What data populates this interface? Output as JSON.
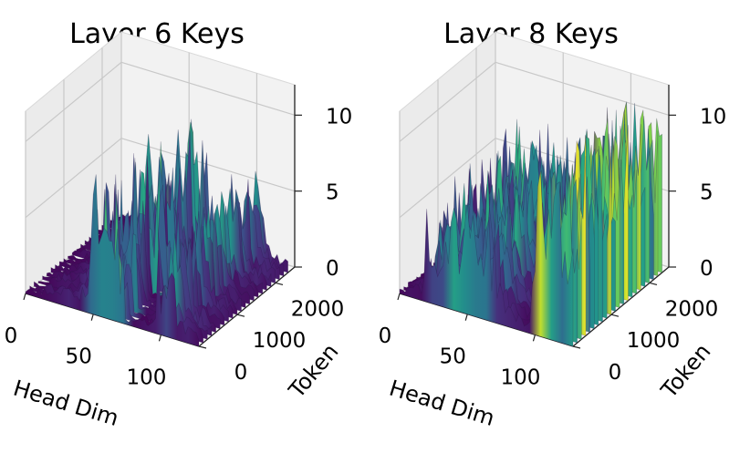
{
  "chart_data": [
    {
      "type": "surface3d",
      "title": "Layer 6 Keys",
      "xlabel": "Head Dim",
      "ylabel": "Token",
      "zlabel": "",
      "x_ticks": [
        "0",
        "50",
        "100"
      ],
      "y_ticks": [
        "0",
        "1000",
        "2000"
      ],
      "z_ticks": [
        "0",
        "5",
        "10"
      ],
      "xlim": [
        0,
        128
      ],
      "ylim": [
        0,
        2500
      ],
      "zlim": [
        0,
        12
      ],
      "colormap": "viridis",
      "grid": true,
      "series": [
        {
          "x": [
            0,
            8,
            16,
            24,
            32,
            40,
            48,
            56,
            64,
            72,
            80,
            88,
            96,
            100,
            104,
            108,
            112,
            116,
            120,
            128
          ],
          "z": [
            0.3,
            0.5,
            0.8,
            1.0,
            1.3,
            1.4,
            1.8,
            2.2,
            2.3,
            0.4,
            0.5,
            0.8,
            1.0,
            2.5,
            6.0,
            4.5,
            1.8,
            1.4,
            1.2,
            0.8
          ]
        }
      ],
      "peak_regions": [
        {
          "x_range": [
            48,
            72
          ],
          "z_max": 10
        },
        {
          "x_range": [
            98,
            110
          ],
          "z_max": 7
        }
      ]
    },
    {
      "type": "surface3d",
      "title": "Layer 8 Keys",
      "xlabel": "Head Dim",
      "ylabel": "Token",
      "zlabel": "",
      "x_ticks": [
        "0",
        "50",
        "100"
      ],
      "y_ticks": [
        "0",
        "1000",
        "2000"
      ],
      "z_ticks": [
        "0",
        "5",
        "10"
      ],
      "xlim": [
        0,
        128
      ],
      "ylim": [
        0,
        2500
      ],
      "zlim": [
        0,
        12
      ],
      "colormap": "viridis",
      "grid": true,
      "series": [
        {
          "x": [
            0,
            8,
            16,
            24,
            32,
            40,
            48,
            56,
            64,
            72,
            80,
            88,
            96,
            100,
            104,
            108,
            112,
            116,
            120,
            128
          ],
          "z": [
            0.3,
            0.6,
            1.2,
            2.0,
            2.8,
            3.5,
            4.0,
            4.8,
            5.0,
            3.5,
            1.5,
            1.0,
            0.8,
            9.0,
            10.0,
            10.5,
            11.0,
            11.0,
            10.5,
            9.5
          ]
        }
      ],
      "peak_regions": [
        {
          "x_range": [
            20,
            70
          ],
          "z_max": 8
        },
        {
          "x_range": [
            98,
            128
          ],
          "z_max": 11
        }
      ]
    }
  ]
}
